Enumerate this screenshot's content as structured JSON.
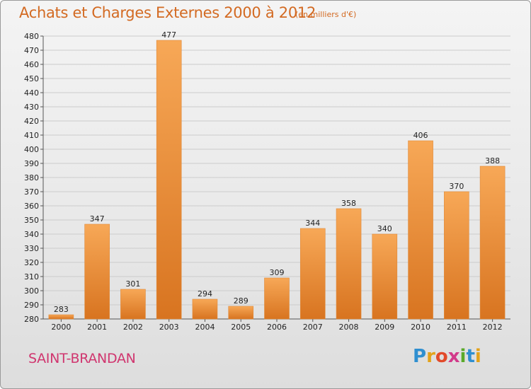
{
  "header": {
    "title": "Achats et Charges Externes 2000 à 2012",
    "unit": "(en milliers d'€)"
  },
  "footer": {
    "commune": "SAINT-BRANDAN",
    "logo": {
      "letters": [
        "P",
        "r",
        "o",
        "x",
        "i",
        "t",
        "i"
      ],
      "colors": [
        "#2f8fd0",
        "#e3a21a",
        "#e24a2a",
        "#d23a8a",
        "#5aaa2a",
        "#2f8fd0",
        "#e3a21a"
      ]
    }
  },
  "colors": {
    "bar_light": "#f7a857",
    "bar_dark": "#d87420",
    "grid": "#cccccc",
    "title": "#d36a22",
    "commune": "#d0366f"
  },
  "chart_data": {
    "type": "bar",
    "title": "Achats et Charges Externes 2000 à 2012",
    "subtitle": "(en milliers d'€)",
    "xlabel": "",
    "ylabel": "",
    "categories": [
      "2000",
      "2001",
      "2002",
      "2003",
      "2004",
      "2005",
      "2006",
      "2007",
      "2008",
      "2009",
      "2010",
      "2011",
      "2012"
    ],
    "values": [
      283,
      347,
      301,
      477,
      294,
      289,
      309,
      344,
      358,
      340,
      406,
      370,
      388
    ],
    "value_labels": [
      "283",
      "347",
      "301",
      "477",
      "294",
      "289",
      "309",
      "344",
      "358",
      "340",
      "406",
      "370",
      "388"
    ],
    "ylim": [
      280,
      480
    ],
    "yticks": [
      280,
      290,
      300,
      310,
      320,
      330,
      340,
      350,
      360,
      370,
      380,
      390,
      400,
      410,
      420,
      430,
      440,
      450,
      460,
      470,
      480
    ],
    "grid": true,
    "legend": "none"
  }
}
